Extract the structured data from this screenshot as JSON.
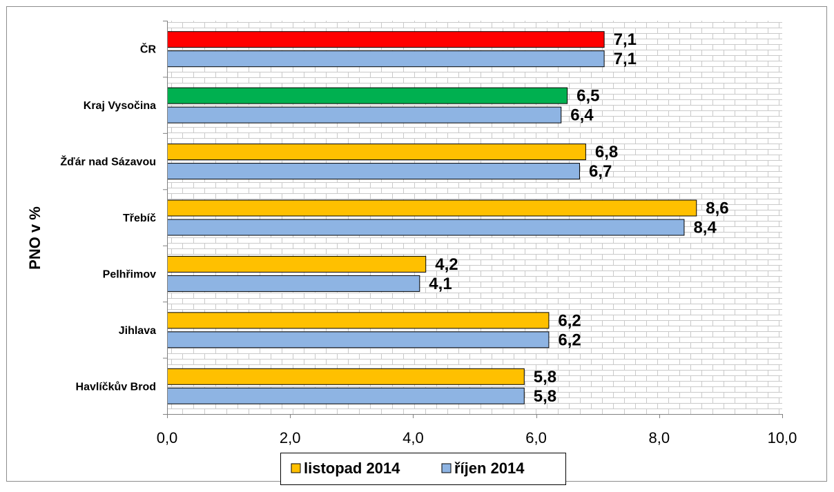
{
  "chart_data": {
    "type": "bar",
    "orientation": "horizontal",
    "ylabel": "PNO v %",
    "categories": [
      "ČR",
      "Kraj Vysočina",
      "Žďár nad Sázavou",
      "Třebíč",
      "Pelhřimov",
      "Jihlava",
      "Havlíčkův Brod"
    ],
    "series": [
      {
        "name": "listopad 2014",
        "color": "#FFC000",
        "point_colors": [
          "#FF0000",
          "#00B050",
          "#FFC000",
          "#FFC000",
          "#FFC000",
          "#FFC000",
          "#FFC000"
        ],
        "values": [
          7.1,
          6.5,
          6.8,
          8.6,
          4.2,
          6.2,
          5.8
        ],
        "labels": [
          "7,1",
          "6,5",
          "6,8",
          "8,6",
          "4,2",
          "6,2",
          "5,8"
        ]
      },
      {
        "name": "říjen 2014",
        "color": "#8EB4E3",
        "values": [
          7.1,
          6.4,
          6.7,
          8.4,
          4.1,
          6.2,
          5.8
        ],
        "labels": [
          "7,1",
          "6,4",
          "6,7",
          "8,4",
          "4,1",
          "6,2",
          "5,8"
        ]
      }
    ],
    "xlim": [
      0,
      10
    ],
    "xticks": [
      0,
      2,
      4,
      6,
      8,
      10
    ],
    "xtick_labels": [
      "0,0",
      "2,0",
      "4,0",
      "6,0",
      "8,0",
      "10,0"
    ],
    "grid": false,
    "plot_background": "brick-pattern",
    "legend_position": "bottom-center"
  }
}
